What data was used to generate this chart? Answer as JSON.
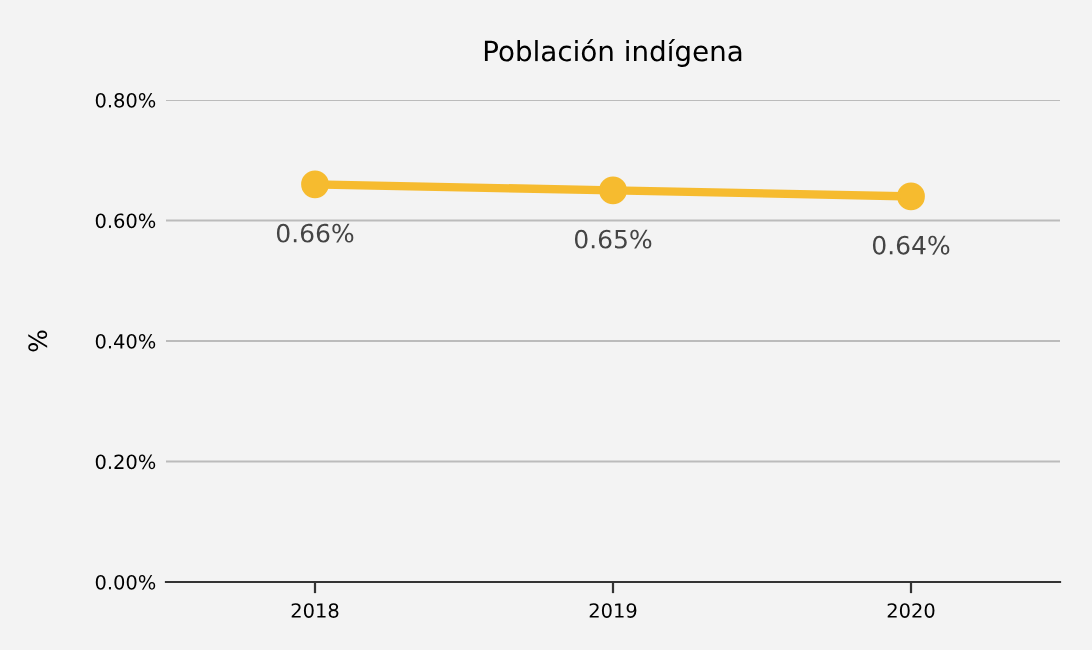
{
  "chart_data": {
    "type": "line",
    "title": "Población indígena",
    "ylabel": "%",
    "categories": [
      "2018",
      "2019",
      "2020"
    ],
    "series": [
      {
        "color": "#f6bb2f",
        "values": [
          0.66,
          0.65,
          0.64
        ],
        "value_labels": [
          "0.66%",
          "0.65%",
          "0.64%"
        ]
      }
    ],
    "ylim": [
      0,
      0.8
    ],
    "yticks": [
      {
        "value": 0,
        "label": "0.00%"
      },
      {
        "value": 0.2,
        "label": "0.20%"
      },
      {
        "value": 0.4,
        "label": "0.40%"
      },
      {
        "value": 0.6,
        "label": "0.60%"
      },
      {
        "value": 0.8,
        "label": "0.80%"
      }
    ],
    "grid": "y",
    "marker": "circle",
    "line_style": "solid",
    "legend": false
  }
}
